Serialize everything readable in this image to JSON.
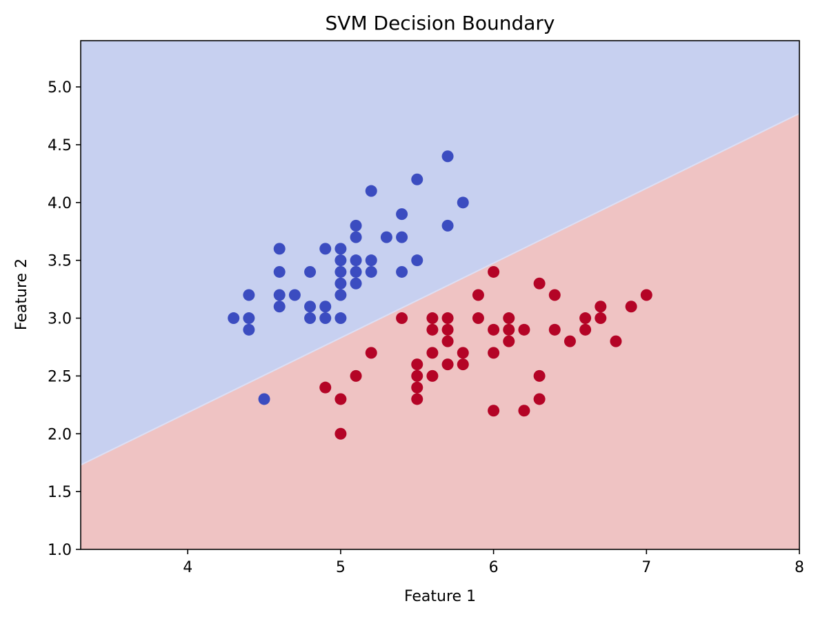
{
  "chart_data": {
    "type": "scatter",
    "title": "SVM Decision Boundary",
    "xlabel": "Feature 1",
    "ylabel": "Feature 2",
    "xlim": [
      3.3,
      8.0
    ],
    "ylim": [
      1.0,
      5.4
    ],
    "xticks": [
      4,
      5,
      6,
      7,
      8
    ],
    "yticks": [
      1.0,
      1.5,
      2.0,
      2.5,
      3.0,
      3.5,
      4.0,
      4.5,
      5.0
    ],
    "xtick_labels": [
      "4",
      "5",
      "6",
      "7",
      "8"
    ],
    "ytick_labels": [
      "1.0",
      "1.5",
      "2.0",
      "2.5",
      "3.0",
      "3.5",
      "4.0",
      "4.5",
      "5.0"
    ],
    "grid": false,
    "decision_boundary": {
      "points": [
        [
          3.3,
          1.73
        ],
        [
          8.0,
          4.77
        ]
      ],
      "upper_region_color": "#c7d0f0",
      "lower_region_color": "#efc3c3"
    },
    "series": [
      {
        "color": "#3b4cc0",
        "points": [
          [
            4.3,
            3.0
          ],
          [
            4.4,
            3.2
          ],
          [
            4.4,
            3.0
          ],
          [
            4.4,
            2.9
          ],
          [
            4.5,
            2.3
          ],
          [
            4.6,
            3.6
          ],
          [
            4.6,
            3.4
          ],
          [
            4.6,
            3.2
          ],
          [
            4.6,
            3.1
          ],
          [
            4.7,
            3.2
          ],
          [
            4.8,
            3.4
          ],
          [
            4.8,
            3.1
          ],
          [
            4.8,
            3.0
          ],
          [
            4.9,
            3.6
          ],
          [
            4.9,
            3.1
          ],
          [
            4.9,
            3.0
          ],
          [
            5.0,
            3.6
          ],
          [
            5.0,
            3.5
          ],
          [
            5.0,
            3.4
          ],
          [
            5.0,
            3.3
          ],
          [
            5.0,
            3.2
          ],
          [
            5.0,
            3.0
          ],
          [
            5.1,
            3.8
          ],
          [
            5.1,
            3.7
          ],
          [
            5.1,
            3.5
          ],
          [
            5.1,
            3.4
          ],
          [
            5.1,
            3.3
          ],
          [
            5.2,
            4.1
          ],
          [
            5.2,
            3.5
          ],
          [
            5.2,
            3.4
          ],
          [
            5.3,
            3.7
          ],
          [
            5.4,
            3.9
          ],
          [
            5.4,
            3.7
          ],
          [
            5.4,
            3.4
          ],
          [
            5.5,
            4.2
          ],
          [
            5.5,
            3.5
          ],
          [
            5.7,
            4.4
          ],
          [
            5.7,
            3.8
          ],
          [
            5.8,
            4.0
          ]
        ]
      },
      {
        "color": "#b40426",
        "points": [
          [
            4.9,
            2.4
          ],
          [
            5.0,
            2.3
          ],
          [
            5.0,
            2.0
          ],
          [
            5.1,
            2.5
          ],
          [
            5.2,
            2.7
          ],
          [
            5.4,
            3.0
          ],
          [
            5.5,
            2.6
          ],
          [
            5.5,
            2.5
          ],
          [
            5.5,
            2.4
          ],
          [
            5.5,
            2.3
          ],
          [
            5.6,
            3.0
          ],
          [
            5.6,
            2.9
          ],
          [
            5.6,
            2.7
          ],
          [
            5.6,
            2.5
          ],
          [
            5.7,
            3.0
          ],
          [
            5.7,
            2.9
          ],
          [
            5.7,
            2.8
          ],
          [
            5.7,
            2.6
          ],
          [
            5.8,
            2.7
          ],
          [
            5.8,
            2.6
          ],
          [
            5.9,
            3.2
          ],
          [
            5.9,
            3.0
          ],
          [
            6.0,
            3.4
          ],
          [
            6.0,
            2.9
          ],
          [
            6.0,
            2.7
          ],
          [
            6.0,
            2.2
          ],
          [
            6.1,
            3.0
          ],
          [
            6.1,
            2.9
          ],
          [
            6.1,
            2.8
          ],
          [
            6.2,
            2.9
          ],
          [
            6.2,
            2.2
          ],
          [
            6.3,
            3.3
          ],
          [
            6.3,
            2.5
          ],
          [
            6.3,
            2.3
          ],
          [
            6.4,
            3.2
          ],
          [
            6.4,
            2.9
          ],
          [
            6.5,
            2.8
          ],
          [
            6.6,
            3.0
          ],
          [
            6.6,
            2.9
          ],
          [
            6.7,
            3.1
          ],
          [
            6.7,
            3.0
          ],
          [
            6.8,
            2.8
          ],
          [
            6.9,
            3.1
          ],
          [
            7.0,
            3.2
          ]
        ]
      }
    ]
  }
}
